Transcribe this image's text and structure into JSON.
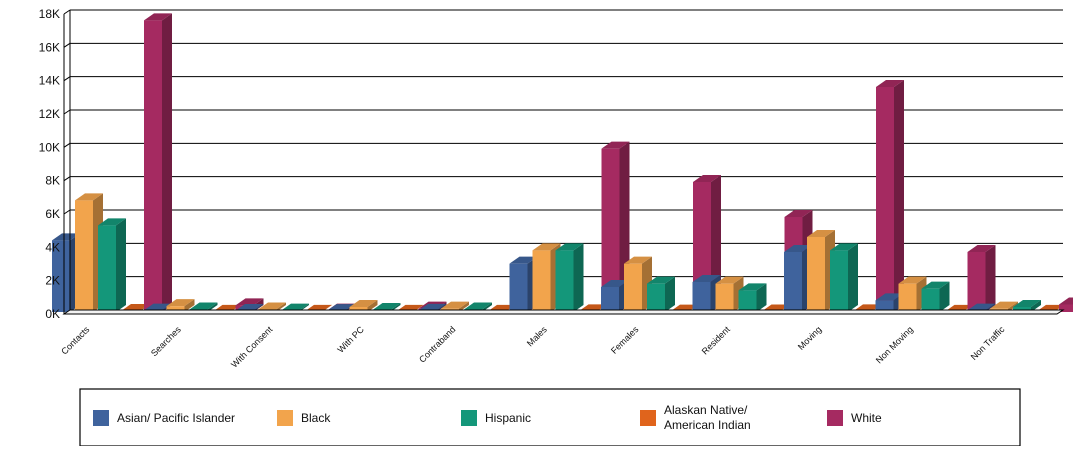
{
  "chart_data": {
    "type": "bar",
    "title": "",
    "xlabel": "",
    "ylabel": "",
    "ylim": [
      0,
      18000
    ],
    "y_ticks": [
      "0K",
      "2K",
      "4K",
      "6K",
      "8K",
      "10K",
      "12K",
      "14K",
      "16K",
      "18K"
    ],
    "categories": [
      "Contacts",
      "Searches",
      "With Consent",
      "With PC",
      "Contraband",
      "Males",
      "Females",
      "Resident",
      "Moving",
      "Non Moving",
      "Non Traffic"
    ],
    "series": [
      {
        "name": "Asian/ Pacific Islander",
        "color": "#3f639d",
        "values": [
          4300,
          80,
          60,
          50,
          70,
          2900,
          1500,
          1800,
          3600,
          700,
          80
        ]
      },
      {
        "name": "Black",
        "color": "#f2a44c",
        "values": [
          6700,
          350,
          150,
          300,
          200,
          3700,
          2900,
          1700,
          4500,
          1700,
          200
        ]
      },
      {
        "name": "Hispanic",
        "color": "#14977a",
        "values": [
          5200,
          150,
          80,
          120,
          150,
          3700,
          1700,
          1300,
          3700,
          1400,
          300
        ]
      },
      {
        "name": "Alaskan Native/\nAmerican Indian",
        "color": "#e0641c",
        "values": [
          60,
          10,
          5,
          5,
          5,
          40,
          20,
          30,
          40,
          10,
          5
        ]
      },
      {
        "name": "White",
        "color": "#a52a61",
        "values": [
          17500,
          400,
          80,
          200,
          250,
          9800,
          7800,
          5700,
          13500,
          3600,
          450
        ]
      }
    ],
    "grid": true,
    "legend_position": "bottom"
  }
}
